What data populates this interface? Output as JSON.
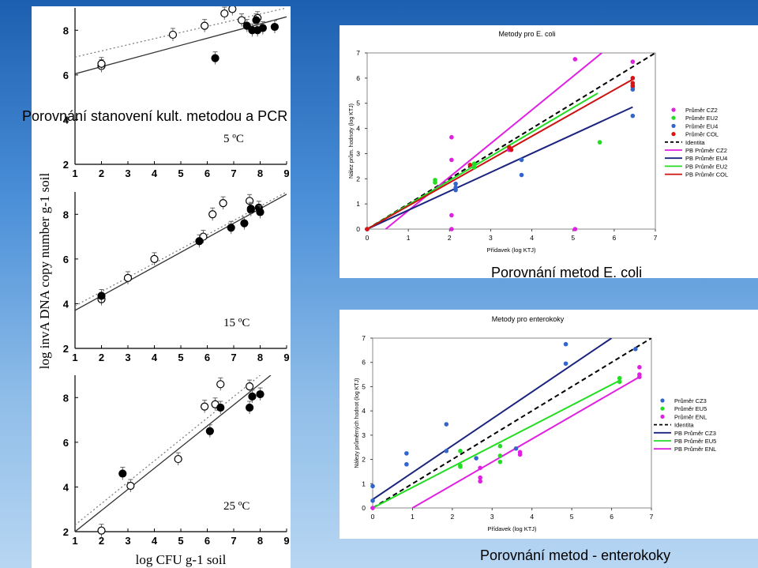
{
  "headings": {
    "top": "Porovnání stanovení kult. metodou a PCR",
    "middle": "Porovnání metod E. coli",
    "bottom": "Porovnání metod  - enterokoky"
  },
  "left_figure": {
    "ylabel": "log invA DNA copy number g-1 soil",
    "xlabel": "log CFU g-1 soil",
    "panel_labels": [
      "5 ºC",
      "15 ºC",
      "25 ºC"
    ]
  },
  "chart_data": [
    {
      "type": "scatter",
      "title": "Metody pro E. coli",
      "xlabel": "Přídavek (log KTJ)",
      "ylabel": "Nález prům. hodnoty (log KTJ)",
      "xlim": [
        0,
        7
      ],
      "ylim": [
        0,
        7
      ],
      "xticks": [
        0,
        1,
        2,
        3,
        4,
        5,
        6,
        7
      ],
      "yticks": [
        0,
        1,
        2,
        3,
        4,
        5,
        6,
        7
      ],
      "legend_position": "right",
      "series": [
        {
          "name": "Průměr CZ2",
          "color": "#e020e0",
          "kind": "points",
          "x": [
            0,
            2.05,
            2.05,
            2.05,
            2.05,
            3.45,
            5.05,
            5.05,
            6.45
          ],
          "y": [
            0,
            0,
            0.55,
            2.75,
            3.65,
            3.15,
            6.75,
            0,
            6.65
          ]
        },
        {
          "name": "Průměr EU2",
          "color": "#22dd22",
          "kind": "points",
          "x": [
            0,
            1.65,
            1.65,
            2.6,
            2.6,
            5.65
          ],
          "y": [
            0,
            1.85,
            1.95,
            2.45,
            2.6,
            3.45
          ]
        },
        {
          "name": "Průměr EU4",
          "color": "#3366cc",
          "kind": "points",
          "x": [
            0,
            2.15,
            2.15,
            2.15,
            3.75,
            3.75,
            6.45,
            6.45,
            6.45
          ],
          "y": [
            0,
            1.55,
            1.65,
            1.8,
            2.75,
            2.15,
            4.5,
            5.55,
            5.65
          ]
        },
        {
          "name": "Průměr COL",
          "color": "#dd1111",
          "kind": "points",
          "x": [
            0,
            2.5,
            3.45,
            3.5,
            6.45,
            6.45,
            6.45
          ],
          "y": [
            0,
            2.55,
            3.25,
            3.15,
            5.7,
            5.8,
            6.0
          ]
        },
        {
          "name": "Identita",
          "color": "#000000",
          "kind": "line",
          "dashed": true,
          "x": [
            0,
            7
          ],
          "y": [
            0,
            7
          ]
        },
        {
          "name": "PB Průměr CZ2",
          "color": "#e020e0",
          "kind": "line",
          "x": [
            0.45,
            5.7
          ],
          "y": [
            0,
            7
          ]
        },
        {
          "name": "PB Průměr EU4",
          "color": "#1a237e",
          "kind": "line",
          "x": [
            0,
            6.45
          ],
          "y": [
            0,
            4.85
          ]
        },
        {
          "name": "PB Průměr EU2",
          "color": "#22dd22",
          "kind": "line",
          "x": [
            0,
            5.6
          ],
          "y": [
            0,
            5.4
          ]
        },
        {
          "name": "PB Průměr COL",
          "color": "#cc1111",
          "kind": "line",
          "x": [
            0,
            6.45
          ],
          "y": [
            0,
            5.95
          ]
        }
      ]
    },
    {
      "type": "scatter",
      "title": "Metody pro enterokoky",
      "xlabel": "Přídavek (log KTJ)",
      "ylabel": "Nálezy průměrných hodnot (log KTJ)",
      "xlim": [
        0,
        7
      ],
      "ylim": [
        0,
        7
      ],
      "xticks": [
        0,
        1,
        2,
        3,
        4,
        5,
        6,
        7
      ],
      "yticks": [
        0,
        1,
        2,
        3,
        4,
        5,
        6,
        7
      ],
      "legend_position": "right",
      "series": [
        {
          "name": "Průměr CZ3",
          "color": "#3366cc",
          "kind": "points",
          "x": [
            0,
            0,
            0.85,
            0.85,
            1.85,
            1.85,
            2.6,
            3.6,
            4.85,
            4.85,
            6.6
          ],
          "y": [
            0.3,
            0.9,
            1.8,
            2.25,
            2.35,
            3.45,
            2.05,
            2.45,
            5.95,
            6.75,
            6.55
          ]
        },
        {
          "name": "Průměr EU5",
          "color": "#22dd22",
          "kind": "points",
          "x": [
            2.2,
            2.2,
            2.2,
            3.2,
            3.2,
            3.2,
            6.2,
            6.2
          ],
          "y": [
            1.7,
            1.75,
            2.35,
            1.9,
            2.15,
            2.55,
            5.2,
            5.35
          ]
        },
        {
          "name": "Průměr ENL",
          "color": "#e020e0",
          "kind": "points",
          "x": [
            0,
            2.7,
            2.7,
            2.7,
            3.7,
            3.7,
            6.7,
            6.7,
            6.7
          ],
          "y": [
            0,
            1.1,
            1.25,
            1.65,
            2.2,
            2.3,
            5.4,
            5.5,
            5.8
          ]
        },
        {
          "name": "Identita",
          "color": "#000000",
          "kind": "line",
          "dashed": true,
          "x": [
            0,
            7
          ],
          "y": [
            0,
            7
          ]
        },
        {
          "name": "PB Průměr CZ3",
          "color": "#1a237e",
          "kind": "line",
          "x": [
            0,
            6.0
          ],
          "y": [
            0.35,
            7
          ]
        },
        {
          "name": "PB Průměr EU5",
          "color": "#22dd22",
          "kind": "line",
          "x": [
            0,
            6.2
          ],
          "y": [
            0,
            5.25
          ]
        },
        {
          "name": "PB Průměr ENL",
          "color": "#e020e0",
          "kind": "line",
          "x": [
            1.0,
            6.7
          ],
          "y": [
            0,
            5.4
          ]
        }
      ]
    },
    {
      "type": "scatter",
      "title": "",
      "xlabel": "",
      "ylabel": "",
      "xlim": [
        1,
        9
      ],
      "ylim": [
        2,
        9
      ],
      "xticks": [
        1,
        2,
        3,
        4,
        5,
        6,
        7,
        8,
        9
      ],
      "yticks": [
        2,
        4,
        6,
        8
      ],
      "panel_label": "5 ºC",
      "series": [
        {
          "kind": "open",
          "x": [
            2,
            2,
            4.7,
            5.9,
            6.65,
            6.95,
            7.3,
            7.9
          ],
          "y": [
            6.4,
            6.5,
            7.8,
            8.2,
            8.75,
            8.95,
            8.45,
            8.55
          ]
        },
        {
          "kind": "filled",
          "x": [
            6.3,
            7.5,
            7.7,
            7.85,
            7.9,
            8.1,
            8.55
          ],
          "y": [
            6.75,
            8.2,
            8.0,
            8.45,
            8.0,
            8.1,
            8.15
          ]
        },
        {
          "kind": "line-solid",
          "x": [
            1,
            9
          ],
          "y": [
            6.05,
            8.6
          ]
        },
        {
          "kind": "line-dotted",
          "x": [
            1,
            9
          ],
          "y": [
            6.8,
            9.0
          ]
        }
      ]
    },
    {
      "type": "scatter",
      "title": "",
      "xlabel": "",
      "ylabel": "",
      "xlim": [
        1,
        9
      ],
      "ylim": [
        2,
        9
      ],
      "xticks": [
        1,
        2,
        3,
        4,
        5,
        6,
        7,
        8,
        9
      ],
      "yticks": [
        2,
        4,
        6,
        8
      ],
      "panel_label": "15 ºC",
      "series": [
        {
          "kind": "open",
          "x": [
            2,
            3,
            4,
            5.85,
            6.2,
            6.6,
            7.6,
            7.65
          ],
          "y": [
            4.2,
            5.15,
            6.0,
            7.0,
            8.0,
            8.5,
            8.6,
            8.2
          ]
        },
        {
          "kind": "filled",
          "x": [
            2,
            5.7,
            6.9,
            7.4,
            7.65,
            7.95,
            8.0
          ],
          "y": [
            4.35,
            6.8,
            7.4,
            7.6,
            8.25,
            8.3,
            8.1
          ]
        },
        {
          "kind": "line-solid",
          "x": [
            1,
            9
          ],
          "y": [
            3.7,
            8.9
          ]
        },
        {
          "kind": "line-dotted",
          "x": [
            1,
            9
          ],
          "y": [
            3.9,
            9.0
          ]
        }
      ]
    },
    {
      "type": "scatter",
      "title": "",
      "xlabel": "",
      "ylabel": "",
      "xlim": [
        1,
        9
      ],
      "ylim": [
        2,
        9
      ],
      "xticks": [
        1,
        2,
        3,
        4,
        5,
        6,
        7,
        8,
        9
      ],
      "yticks": [
        2,
        4,
        6,
        8
      ],
      "panel_label": "25 ºC",
      "series": [
        {
          "kind": "open",
          "x": [
            2,
            3.1,
            4.9,
            5.9,
            6.3,
            6.5,
            7.6
          ],
          "y": [
            2.05,
            4.05,
            5.25,
            7.6,
            7.7,
            8.6,
            8.5
          ]
        },
        {
          "kind": "filled",
          "x": [
            2.8,
            6.1,
            6.5,
            7.6,
            7.7,
            8.0
          ],
          "y": [
            4.6,
            6.5,
            7.55,
            7.55,
            8.05,
            8.15
          ]
        },
        {
          "kind": "line-solid",
          "x": [
            1,
            8.4
          ],
          "y": [
            2.0,
            9.0
          ]
        },
        {
          "kind": "line-dotted",
          "x": [
            1,
            8.0
          ],
          "y": [
            2.3,
            9.0
          ]
        }
      ]
    }
  ]
}
